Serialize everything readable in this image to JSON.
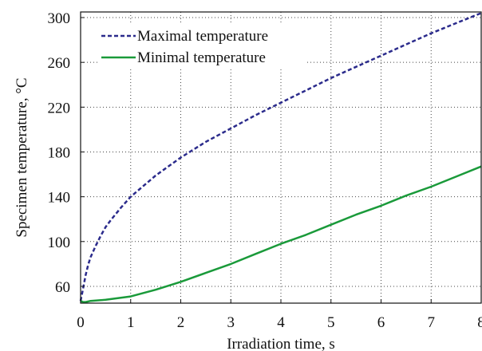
{
  "chart_data": {
    "type": "line",
    "xlabel": "Irradiation time, s",
    "ylabel": "Specimen temperature, °C",
    "xlim": [
      0,
      8
    ],
    "ylim": [
      45,
      305
    ],
    "xticks": [
      "0",
      "1",
      "2",
      "3",
      "4",
      "5",
      "6",
      "7",
      "8"
    ],
    "yticks": [
      "60",
      "100",
      "140",
      "180",
      "220",
      "260",
      "300"
    ],
    "grid": true,
    "legend_position": "top-left",
    "series": [
      {
        "name": "Maximal temperature",
        "color": "#2b2b8c",
        "style": "dashed",
        "x": [
          0,
          0.05,
          0.1,
          0.15,
          0.2,
          0.3,
          0.4,
          0.5,
          0.6,
          0.8,
          1.0,
          1.5,
          2.0,
          2.5,
          3.0,
          3.5,
          4.0,
          4.5,
          5.0,
          5.5,
          6.0,
          6.5,
          7.0,
          7.5,
          8.0
        ],
        "y": [
          47,
          58,
          70,
          79,
          86,
          96,
          105,
          113,
          119,
          130,
          140,
          159,
          175,
          189,
          201,
          213,
          224,
          235,
          246,
          256,
          266,
          276,
          286,
          295,
          304
        ]
      },
      {
        "name": "Minimal temperature",
        "color": "#1a9a3a",
        "style": "solid",
        "x": [
          0,
          0.05,
          0.1,
          0.2,
          0.5,
          1.0,
          1.5,
          2.0,
          2.5,
          3.0,
          3.5,
          4.0,
          4.5,
          5.0,
          5.5,
          6.0,
          6.5,
          7.0,
          7.5,
          8.0
        ],
        "y": [
          47,
          46,
          46,
          47,
          48,
          51,
          57,
          64,
          72,
          80,
          89,
          98,
          106,
          115,
          124,
          132,
          141,
          149,
          158,
          167
        ]
      }
    ]
  }
}
